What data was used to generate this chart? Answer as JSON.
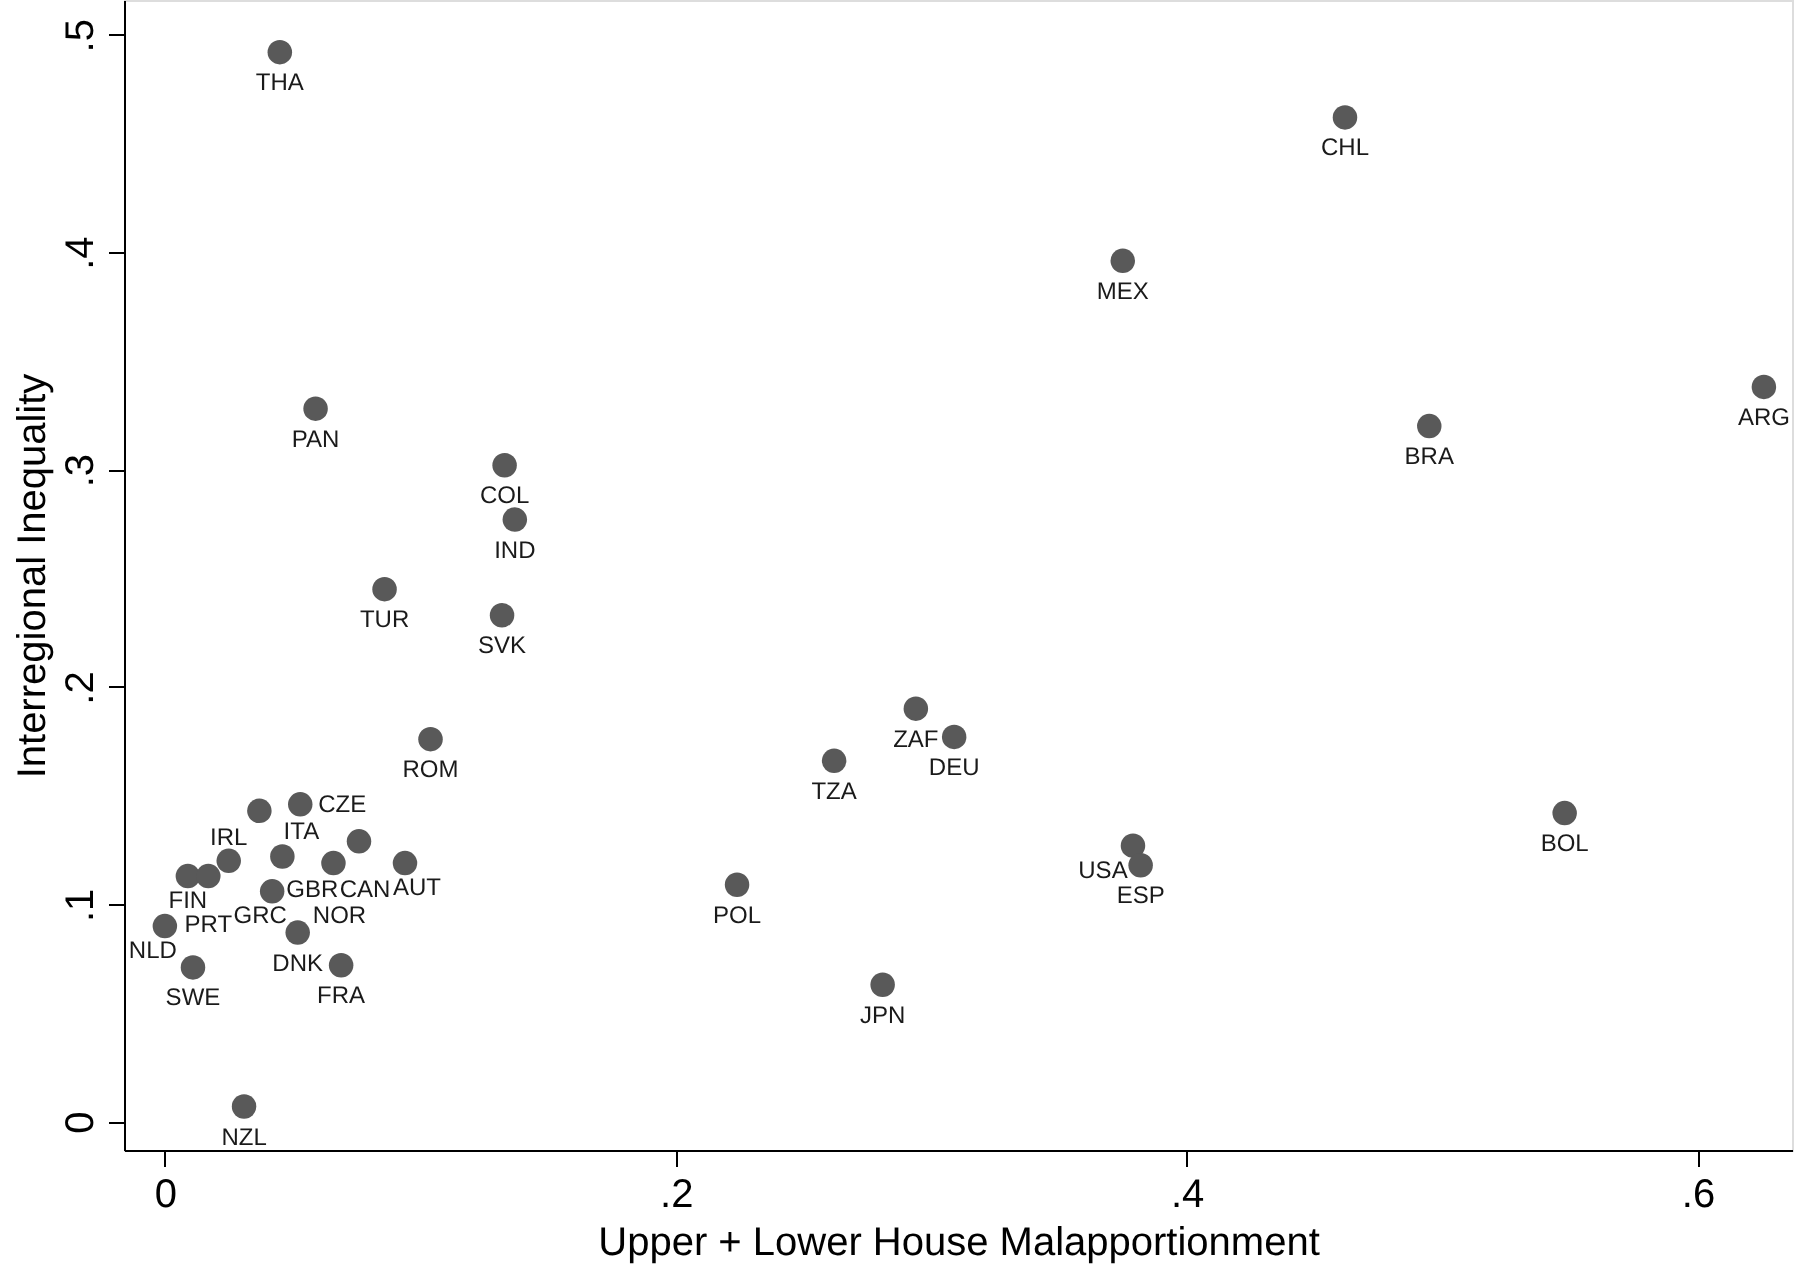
{
  "chart_data": {
    "type": "scatter",
    "xlabel": "Upper + Lower House Malapportionment",
    "ylabel": "Interregional Inequality",
    "xlim": [
      -0.016,
      0.637
    ],
    "ylim": [
      -0.013,
      0.516
    ],
    "xticks": [
      {
        "value": 0,
        "label": "0"
      },
      {
        "value": 0.2,
        "label": ".2"
      },
      {
        "value": 0.4,
        "label": ".4"
      },
      {
        "value": 0.6,
        "label": ".6"
      }
    ],
    "yticks": [
      {
        "value": 0,
        "label": "0"
      },
      {
        "value": 0.1,
        "label": ".1"
      },
      {
        "value": 0.2,
        "label": ".2"
      },
      {
        "value": 0.3,
        "label": ".3"
      },
      {
        "value": 0.4,
        "label": ".4"
      },
      {
        "value": 0.5,
        "label": ".5"
      }
    ],
    "grid": false,
    "marker": "circle",
    "series": [
      {
        "color": "#595959",
        "x": [
          0.0,
          0.009,
          0.017,
          0.025,
          0.037,
          0.053,
          0.046,
          0.042,
          0.076,
          0.066,
          0.094,
          0.052,
          0.069,
          0.011,
          0.031,
          0.045,
          0.059,
          0.133,
          0.137,
          0.086,
          0.132,
          0.104,
          0.462,
          0.375,
          0.626,
          0.495,
          0.294,
          0.309,
          0.262,
          0.224,
          0.281,
          0.379,
          0.382,
          0.548
        ],
        "values": [
          0.09,
          0.113,
          0.113,
          0.12,
          0.143,
          0.146,
          0.122,
          0.106,
          0.129,
          0.119,
          0.119,
          0.087,
          0.072,
          0.071,
          0.007,
          0.492,
          0.328,
          0.302,
          0.277,
          0.245,
          0.233,
          0.176,
          0.462,
          0.396,
          0.338,
          0.32,
          0.19,
          0.177,
          0.166,
          0.109,
          0.063,
          0.127,
          0.118,
          0.142
        ]
      }
    ],
    "annotations": [
      {
        "text": "NLD",
        "x": 0.0,
        "y": 0.09
      },
      {
        "text": "FIN",
        "x": 0.009,
        "y": 0.113
      },
      {
        "text": "PRT",
        "x": 0.017,
        "y": 0.113
      },
      {
        "text": "IRL",
        "x": 0.025,
        "y": 0.12
      },
      {
        "text": "ITA",
        "x": 0.037,
        "y": 0.143
      },
      {
        "text": "CZE",
        "x": 0.053,
        "y": 0.146
      },
      {
        "text": "GBR",
        "x": 0.046,
        "y": 0.122
      },
      {
        "text": "GRC",
        "x": 0.042,
        "y": 0.106
      },
      {
        "text": "CAN",
        "x": 0.076,
        "y": 0.129
      },
      {
        "text": "NOR",
        "x": 0.066,
        "y": 0.119
      },
      {
        "text": "AUT",
        "x": 0.094,
        "y": 0.119
      },
      {
        "text": "DNK",
        "x": 0.052,
        "y": 0.087
      },
      {
        "text": "FRA",
        "x": 0.069,
        "y": 0.072
      },
      {
        "text": "SWE",
        "x": 0.011,
        "y": 0.071
      },
      {
        "text": "NZL",
        "x": 0.031,
        "y": 0.007
      },
      {
        "text": "THA",
        "x": 0.045,
        "y": 0.492
      },
      {
        "text": "PAN",
        "x": 0.059,
        "y": 0.328
      },
      {
        "text": "COL",
        "x": 0.133,
        "y": 0.302
      },
      {
        "text": "IND",
        "x": 0.137,
        "y": 0.277
      },
      {
        "text": "TUR",
        "x": 0.086,
        "y": 0.245
      },
      {
        "text": "SVK",
        "x": 0.132,
        "y": 0.233
      },
      {
        "text": "ROM",
        "x": 0.104,
        "y": 0.176
      },
      {
        "text": "CHL",
        "x": 0.462,
        "y": 0.462
      },
      {
        "text": "MEX",
        "x": 0.375,
        "y": 0.396
      },
      {
        "text": "ARG",
        "x": 0.626,
        "y": 0.338
      },
      {
        "text": "BRA",
        "x": 0.495,
        "y": 0.32
      },
      {
        "text": "ZAF",
        "x": 0.294,
        "y": 0.19
      },
      {
        "text": "DEU",
        "x": 0.309,
        "y": 0.177
      },
      {
        "text": "TZA",
        "x": 0.262,
        "y": 0.166
      },
      {
        "text": "POL",
        "x": 0.224,
        "y": 0.109
      },
      {
        "text": "JPN",
        "x": 0.281,
        "y": 0.063
      },
      {
        "text": "USA",
        "x": 0.379,
        "y": 0.127
      },
      {
        "text": "ESP",
        "x": 0.382,
        "y": 0.118
      },
      {
        "text": "BOL",
        "x": 0.548,
        "y": 0.142
      }
    ]
  }
}
